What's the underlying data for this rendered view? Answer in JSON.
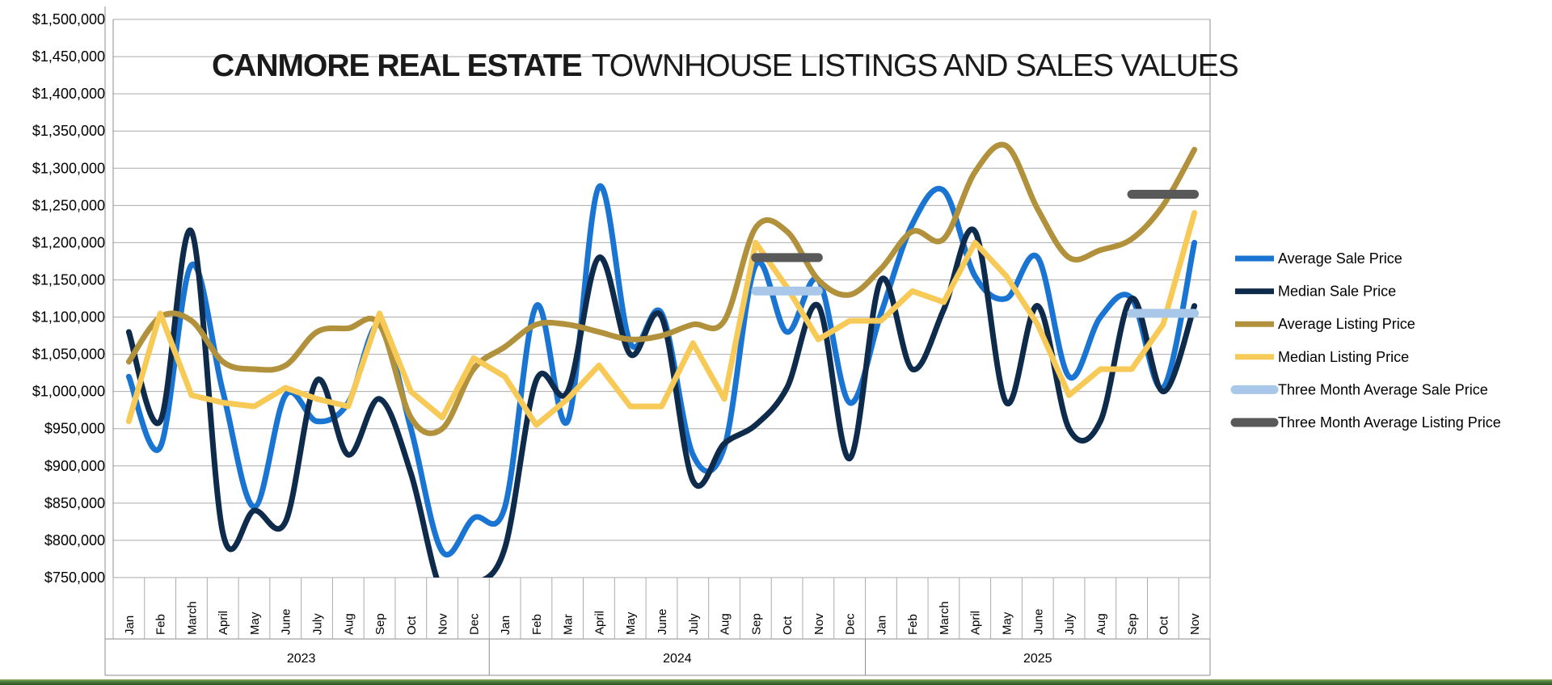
{
  "title": {
    "bold": "CANMORE REAL ESTATE",
    "regular": "TOWNHOUSE LISTINGS AND SALES VALUES"
  },
  "colors": {
    "average_sale": "#1A75D2",
    "median_sale": "#0F2B4C",
    "average_listing": "#B2913C",
    "median_listing": "#F7C957",
    "three_month_sale": "#A9C7E8",
    "three_month_listing": "#595959",
    "gridline": "#ABABAB",
    "frame": "#8C8C8C",
    "green_bar": "#4a7a3a"
  },
  "chart_data": {
    "type": "line",
    "title": "CANMORE REAL ESTATE TOWNHOUSE LISTINGS AND SALES VALUES",
    "ylim": [
      750000,
      1500000
    ],
    "ytick_step": 50000,
    "grid": true,
    "legend_position": "right",
    "x_axis": {
      "months": [
        "Jan",
        "Feb",
        "March",
        "April",
        "May",
        "June",
        "July",
        "Aug",
        "Sep",
        "Oct",
        "Nov",
        "Dec",
        "Jan",
        "Feb",
        "Mar",
        "April",
        "May",
        "June",
        "July",
        "Aug",
        "Sep",
        "Oct",
        "Nov",
        "Dec",
        "Jan",
        "Feb",
        "March",
        "April",
        "May",
        "June",
        "July",
        "Aug",
        "Sep",
        "Oct",
        "Nov"
      ],
      "year_groups": [
        {
          "label": "2023",
          "span": 12
        },
        {
          "label": "2024",
          "span": 12
        },
        {
          "label": "2025",
          "span": 11
        }
      ]
    },
    "series": [
      {
        "name": "Average Sale Price",
        "color": "#1A75D2",
        "style": "smooth",
        "values": [
          1020000,
          925000,
          1170000,
          1000000,
          845000,
          995000,
          960000,
          985000,
          1090000,
          950000,
          785000,
          830000,
          845000,
          1115000,
          960000,
          1275000,
          1065000,
          1105000,
          915000,
          925000,
          1170000,
          1080000,
          1150000,
          985000,
          1105000,
          1225000,
          1270000,
          1155000,
          1125000,
          1180000,
          1020000,
          1100000,
          1125000,
          1005000,
          1200000
        ]
      },
      {
        "name": "Median Sale Price",
        "color": "#0F2B4C",
        "style": "smooth",
        "values": [
          1080000,
          960000,
          1215000,
          810000,
          840000,
          825000,
          1015000,
          915000,
          990000,
          890000,
          730000,
          740000,
          790000,
          1015000,
          1000000,
          1180000,
          1050000,
          1100000,
          880000,
          930000,
          955000,
          1005000,
          1115000,
          910000,
          1150000,
          1030000,
          1110000,
          1215000,
          985000,
          1115000,
          950000,
          960000,
          1125000,
          1000000,
          1115000
        ]
      },
      {
        "name": "Average Listing Price",
        "color": "#B2913C",
        "style": "smooth",
        "values": [
          1040000,
          1100000,
          1095000,
          1040000,
          1030000,
          1035000,
          1080000,
          1085000,
          1090000,
          965000,
          950000,
          1030000,
          1060000,
          1090000,
          1090000,
          1080000,
          1070000,
          1075000,
          1090000,
          1095000,
          1220000,
          1215000,
          1150000,
          1130000,
          1165000,
          1215000,
          1205000,
          1295000,
          1330000,
          1245000,
          1180000,
          1190000,
          1205000,
          1250000,
          1325000
        ]
      },
      {
        "name": "Median Listing Price",
        "color": "#F7C957",
        "style": "straight",
        "values": [
          960000,
          1105000,
          995000,
          985000,
          980000,
          1005000,
          990000,
          980000,
          1105000,
          1000000,
          965000,
          1045000,
          1020000,
          955000,
          990000,
          1035000,
          980000,
          980000,
          1065000,
          990000,
          1200000,
          1140000,
          1070000,
          1095000,
          1095000,
          1135000,
          1120000,
          1200000,
          1155000,
          1090000,
          995000,
          1030000,
          1030000,
          1090000,
          1240000
        ]
      }
    ],
    "segments": [
      {
        "name": "Three Month Average Sale Price",
        "color": "#A9C7E8",
        "start_index": 20,
        "end_index": 22,
        "value": 1135000
      },
      {
        "name": "Three Month Average Listing Price",
        "color": "#595959",
        "start_index": 20,
        "end_index": 22,
        "value": 1180000
      },
      {
        "name": "Three Month Average Sale Price",
        "color": "#A9C7E8",
        "start_index": 32,
        "end_index": 34,
        "value": 1105000
      },
      {
        "name": "Three Month Average Listing Price",
        "color": "#595959",
        "start_index": 32,
        "end_index": 34,
        "value": 1265000
      }
    ],
    "legend": [
      {
        "label": "Average Sale Price",
        "color": "#1A75D2",
        "thick": false
      },
      {
        "label": "Median Sale Price",
        "color": "#0F2B4C",
        "thick": false
      },
      {
        "label": "Average Listing Price",
        "color": "#B2913C",
        "thick": false
      },
      {
        "label": "Median Listing Price",
        "color": "#F7C957",
        "thick": false
      },
      {
        "label": "Three Month Average Sale Price",
        "color": "#A9C7E8",
        "thick": true
      },
      {
        "label": "Three Month Average Listing Price",
        "color": "#595959",
        "thick": true
      }
    ]
  }
}
